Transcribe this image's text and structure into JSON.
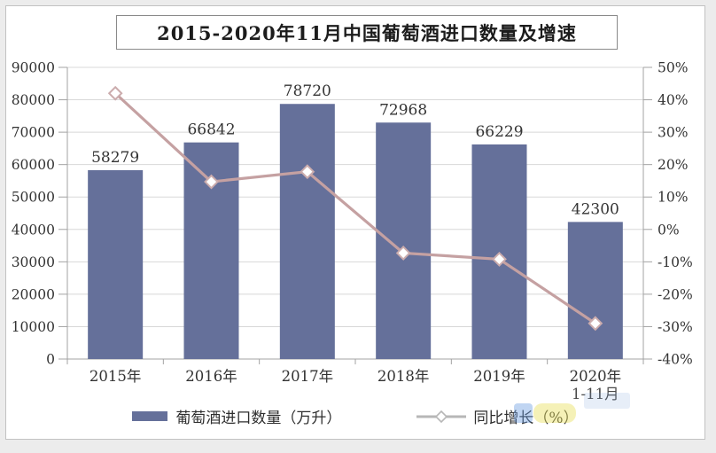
{
  "chart_data": {
    "type": "bar+line",
    "title": "2015-2020年11月中国葡萄酒进口数量及增速",
    "categories": [
      "2015年",
      "2016年",
      "2017年",
      "2018年",
      "2019年",
      "2020年"
    ],
    "category_note": {
      "index": 5,
      "text": "1-11月"
    },
    "series": [
      {
        "name": "葡萄酒进口数量（万升）",
        "type": "bar",
        "axis": "left",
        "values": [
          58279,
          66842,
          78720,
          72968,
          66229,
          42300
        ],
        "labels": [
          "58279",
          "66842",
          "78720",
          "72968",
          "66229",
          "42300"
        ],
        "color": "#65709a"
      },
      {
        "name": "同比增长（%）",
        "type": "line",
        "axis": "right",
        "values": [
          42,
          14.7,
          17.8,
          -7.3,
          -9.2,
          -29
        ],
        "color": "#c5a1a2",
        "marker": "diamond",
        "marker_fill": "#ffffff"
      }
    ],
    "left_axis": {
      "min": 0,
      "max": 90000,
      "step": 10000,
      "ticks": [
        "90000",
        "80000",
        "70000",
        "60000",
        "50000",
        "40000",
        "30000",
        "20000",
        "10000",
        "0"
      ]
    },
    "right_axis": {
      "min": -40,
      "max": 50,
      "step": 10,
      "ticks": [
        "50%",
        "40%",
        "30%",
        "20%",
        "10%",
        "0%",
        "-10%",
        "-20%",
        "-30%",
        "-40%"
      ]
    },
    "grid": true,
    "legend_position": "bottom",
    "colors": {
      "grid": "#d8d8d8",
      "axis": "#a3a3a3",
      "text": "#333333",
      "bar_label": "#343434",
      "legend_line": "#b7b7b7"
    }
  }
}
